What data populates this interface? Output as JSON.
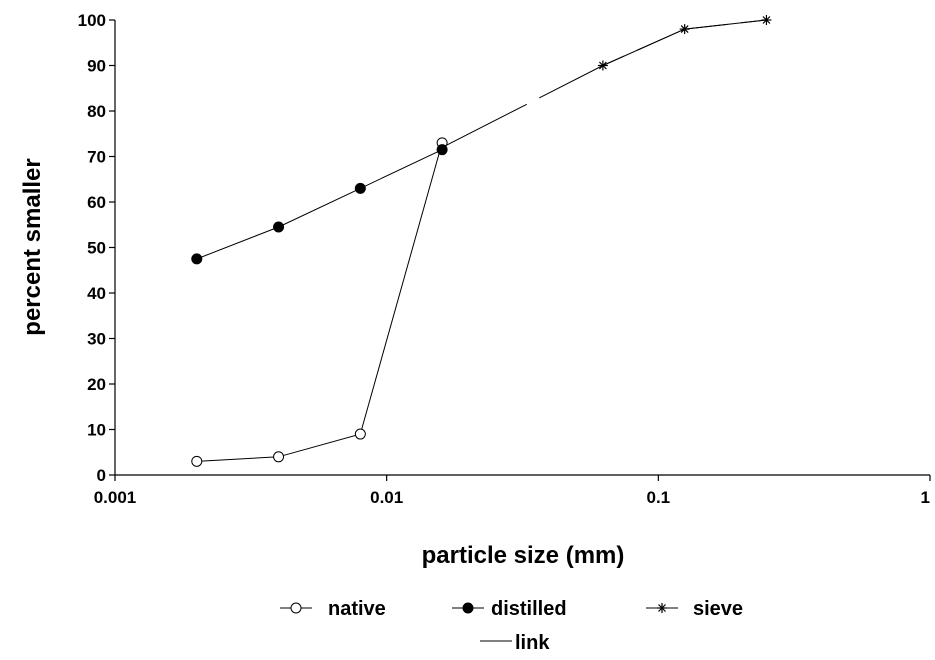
{
  "chart_data": {
    "type": "line",
    "xlabel": "particle size (mm)",
    "ylabel": "percent smaller",
    "xscale": "log",
    "xlim": [
      0.001,
      1
    ],
    "ylim": [
      0,
      100
    ],
    "x_ticks": [
      "0.001",
      "0.01",
      "0.1",
      "1"
    ],
    "y_ticks": [
      "0",
      "10",
      "20",
      "30",
      "40",
      "50",
      "60",
      "70",
      "80",
      "90",
      "100"
    ],
    "grid": false,
    "legend_position": "bottom",
    "series": [
      {
        "name": "native",
        "marker": "open-circle",
        "color": "#000000",
        "x": [
          0.002,
          0.004,
          0.008,
          0.016
        ],
        "y": [
          3,
          4,
          9,
          73
        ]
      },
      {
        "name": "distilled",
        "marker": "filled-circle",
        "color": "#000000",
        "x": [
          0.002,
          0.004,
          0.008,
          0.016
        ],
        "y": [
          47.5,
          54.5,
          63,
          71.5
        ]
      },
      {
        "name": "sieve",
        "marker": "asterisk",
        "color": "#000000",
        "x": [
          0.0625,
          0.125,
          0.25
        ],
        "y": [
          90,
          98,
          100
        ]
      },
      {
        "name": "link",
        "marker": "none",
        "style": "long-dash",
        "color": "#000000",
        "x": [
          0.016,
          0.0625,
          0.125,
          0.25
        ],
        "y": [
          72,
          90,
          98,
          100
        ]
      }
    ]
  }
}
